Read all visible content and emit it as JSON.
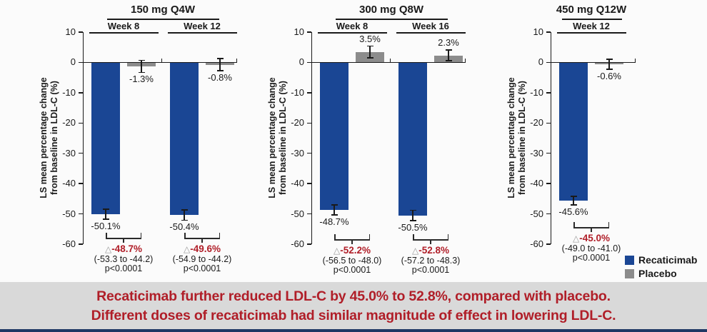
{
  "figure": {
    "delta_symbol": "△",
    "y_axis_title_line1": "LS mean percentage change",
    "y_axis_title_line2": "from baseline in LDL-C (%)"
  },
  "colors": {
    "recaticimab": "#1a4694",
    "placebo": "#8c8c8c",
    "difference_text": "#b01e28",
    "caption_text": "#b01e28",
    "caption_bg": "#d9d9d9",
    "footer_bar": "#1f3864",
    "axis": "#1a1a1a"
  },
  "chart_data": [
    {
      "type": "bar",
      "title": "150 mg Q4W",
      "ylabel_lines": [
        "LS mean percentage change",
        "from baseline in LDL-C (%)"
      ],
      "ylim": [
        -60,
        10
      ],
      "yticks": [
        10,
        0,
        -10,
        -20,
        -30,
        -40,
        -50,
        -60
      ],
      "categories": [
        "Week 8",
        "Week 12"
      ],
      "series": [
        {
          "name": "Recaticimab",
          "values": [
            -50.1,
            -50.4
          ],
          "labels": [
            "-50.1%",
            "-50.4%"
          ],
          "approx_se": [
            1.7,
            1.7
          ]
        },
        {
          "name": "Placebo",
          "values": [
            -1.3,
            -0.8
          ],
          "labels": [
            "-1.3%",
            "-0.8%"
          ],
          "approx_se": [
            2.0,
            2.0
          ]
        }
      ],
      "differences": [
        {
          "label": "-48.7%",
          "ci": "(-53.3 to -44.2)",
          "p": "p<0.0001"
        },
        {
          "label": "-49.6%",
          "ci": "(-54.9 to -44.2)",
          "p": "p<0.0001"
        }
      ]
    },
    {
      "type": "bar",
      "title": "300 mg Q8W",
      "ylabel_lines": [
        "LS mean percentage change",
        "from baseline in LDL-C (%)"
      ],
      "ylim": [
        -60,
        10
      ],
      "yticks": [
        10,
        0,
        -10,
        -20,
        -30,
        -40,
        -50,
        -60
      ],
      "categories": [
        "Week 8",
        "Week 16"
      ],
      "series": [
        {
          "name": "Recaticimab",
          "values": [
            -48.7,
            -50.5
          ],
          "labels": [
            "-48.7%",
            "-50.5%"
          ],
          "approx_se": [
            1.6,
            1.7
          ]
        },
        {
          "name": "Placebo",
          "values": [
            3.5,
            2.3
          ],
          "labels": [
            "3.5%",
            "2.3%"
          ],
          "approx_se": [
            1.9,
            1.8
          ]
        }
      ],
      "differences": [
        {
          "label": "-52.2%",
          "ci": "(-56.5 to -48.0)",
          "p": "p<0.0001"
        },
        {
          "label": "-52.8%",
          "ci": "(-57.2 to -48.3)",
          "p": "p<0.0001"
        }
      ]
    },
    {
      "type": "bar",
      "title": "450 mg Q12W",
      "ylabel_lines": [
        "LS mean percentage change",
        "from baseline in LDL-C (%)"
      ],
      "ylim": [
        -60,
        10
      ],
      "yticks": [
        10,
        0,
        -10,
        -20,
        -30,
        -40,
        -50,
        -60
      ],
      "categories": [
        "Week 12"
      ],
      "series": [
        {
          "name": "Recaticimab",
          "values": [
            -45.6
          ],
          "labels": [
            "-45.6%"
          ],
          "approx_se": [
            1.4
          ]
        },
        {
          "name": "Placebo",
          "values": [
            -0.6
          ],
          "labels": [
            "-0.6%"
          ],
          "approx_se": [
            1.6
          ]
        }
      ],
      "differences": [
        {
          "label": "-45.0%",
          "ci": "(-49.0 to -41.0)",
          "p": "p<0.0001"
        }
      ]
    }
  ],
  "legend": {
    "items": [
      {
        "label": "Recaticimab",
        "color": "#1a4694"
      },
      {
        "label": "Placebo",
        "color": "#8c8c8c"
      }
    ]
  },
  "caption": {
    "line1": "Recaticimab further reduced LDL-C by 45.0% to 52.8%, compared with placebo.",
    "line2": "Different doses of recaticimab had similar magnitude of effect in lowering LDL-C."
  }
}
